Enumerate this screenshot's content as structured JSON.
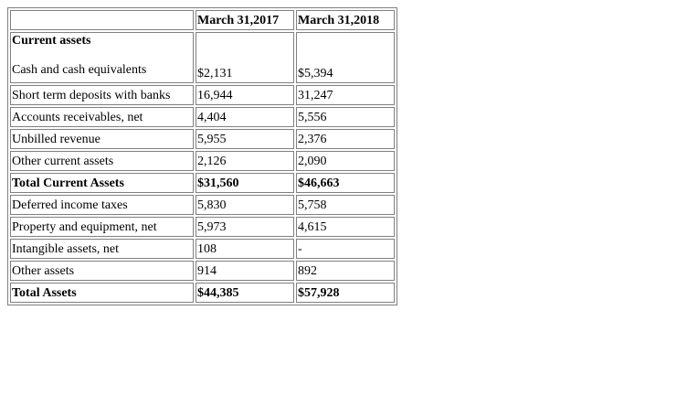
{
  "table": {
    "headers": [
      "",
      "March 31,2017",
      "March 31,2018"
    ],
    "section_header": {
      "label": "Current assets",
      "first_row": {
        "label": "Cash and cash equivalents",
        "v2017": "$2,131",
        "v2018": "$5,394"
      }
    },
    "rows": [
      {
        "label": "Short term deposits with banks",
        "v2017": "16,944",
        "v2018": "31,247",
        "bold": false
      },
      {
        "label": "Accounts receivables, net",
        "v2017": "4,404",
        "v2018": "5,556",
        "bold": false
      },
      {
        "label": "Unbilled revenue",
        "v2017": "5,955",
        "v2018": "2,376",
        "bold": false
      },
      {
        "label": "Other current assets",
        "v2017": "2,126",
        "v2018": "2,090",
        "bold": false
      },
      {
        "label": "Total Current Assets",
        "v2017": "$31,560",
        "v2018": "$46,663",
        "bold": true
      },
      {
        "label": "Deferred income taxes",
        "v2017": "5,830",
        "v2018": "5,758",
        "bold": false
      },
      {
        "label": "Property and equipment, net",
        "v2017": "5,973",
        "v2018": "4,615",
        "bold": false
      },
      {
        "label": "Intangible assets, net",
        "v2017": "108",
        "v2018": "-",
        "bold": false
      },
      {
        "label": "Other assets",
        "v2017": "914",
        "v2018": "892",
        "bold": false
      },
      {
        "label": "Total Assets",
        "v2017": "$44,385",
        "v2018": "$57,928",
        "bold": true
      }
    ]
  }
}
